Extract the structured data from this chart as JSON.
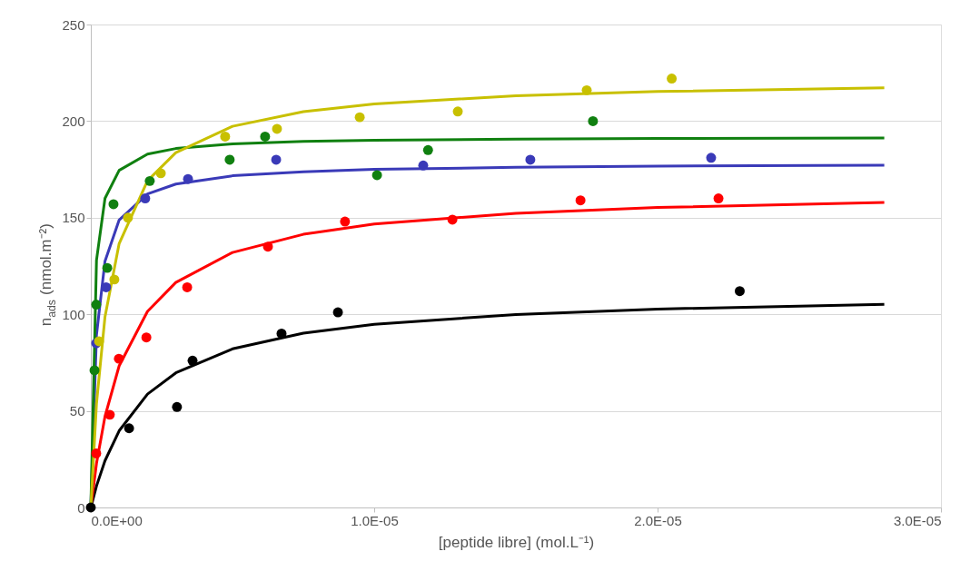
{
  "chart_data": {
    "type": "scatter",
    "xlabel": "[peptide libre] (mol.L⁻¹)",
    "ylabel": "n$_{ads}$ (nmol.m⁻²)",
    "xlim": [
      0,
      3e-05
    ],
    "ylim": [
      0,
      250
    ],
    "xticks": [
      {
        "value": 0,
        "label": "0.0E+00"
      },
      {
        "value": 1e-05,
        "label": "1.0E-05"
      },
      {
        "value": 2e-05,
        "label": "2.0E-05"
      },
      {
        "value": 3e-05,
        "label": "3.0E-05"
      }
    ],
    "yticks": [
      0,
      50,
      100,
      150,
      200,
      250
    ],
    "grid": "y",
    "marker": "circle",
    "series": [
      {
        "color": "#000000",
        "x": [
          0,
          1.35e-06,
          3.04e-06,
          3.59e-06,
          6.73e-06,
          8.72e-06,
          2.29e-05
        ],
        "values": [
          0,
          41,
          52,
          76,
          90,
          101,
          112
        ]
      },
      {
        "color": "#ff0000",
        "x": [
          1.9e-07,
          6.7e-07,
          9.9e-07,
          1.96e-06,
          3.4e-06,
          6.25e-06,
          8.97e-06,
          1.276e-05,
          1.728e-05,
          2.215e-05
        ],
        "values": [
          28,
          48,
          77,
          88,
          114,
          135,
          148,
          149,
          159,
          160
        ]
      },
      {
        "color": "#3a3ab8",
        "x": [
          1.9e-07,
          5.4e-07,
          1.92e-06,
          3.43e-06,
          6.54e-06,
          1.173e-05,
          1.551e-05,
          2.189e-05
        ],
        "values": [
          85,
          114,
          160,
          170,
          180,
          177,
          180,
          181
        ]
      },
      {
        "color": "#108010",
        "x": [
          1.3e-07,
          1.9e-07,
          5.8e-07,
          8e-07,
          2.08e-06,
          4.9e-06,
          6.15e-06,
          1.01e-05,
          1.19e-05,
          1.772e-05
        ],
        "values": [
          71,
          105,
          124,
          157,
          169,
          180,
          192,
          172,
          185,
          200
        ]
      },
      {
        "color": "#c8c000",
        "x": [
          2.9e-07,
          8.3e-07,
          1.31e-06,
          2.47e-06,
          4.74e-06,
          6.57e-06,
          9.49e-06,
          1.295e-05,
          1.75e-05,
          2.05e-05
        ],
        "values": [
          86,
          118,
          150,
          173,
          192,
          196,
          202,
          205,
          216,
          222
        ]
      },
      {
        "type": "line",
        "marker": "none",
        "line_style": "solid",
        "color": "#000000",
        "x": [
          0,
          2e-07,
          5e-07,
          1e-06,
          2e-06,
          3e-06,
          5e-06,
          7.5e-06,
          1e-05,
          1.5e-05,
          2e-05,
          2.8e-05
        ],
        "values": [
          0,
          11.1,
          24.2,
          39.7,
          58.7,
          69.7,
          82.1,
          90.2,
          94.8,
          99.9,
          102.7,
          105.2
        ]
      },
      {
        "type": "line",
        "marker": "none",
        "line_style": "solid",
        "color": "#ff0000",
        "x": [
          0,
          2e-07,
          5e-07,
          1e-06,
          2e-06,
          3e-06,
          5e-06,
          7.5e-06,
          1e-05,
          1.5e-05,
          2e-05,
          2.8e-05
        ],
        "values": [
          0,
          22.8,
          47.1,
          73.3,
          101.5,
          116.5,
          132,
          141.4,
          146.7,
          152.3,
          155.3,
          157.9
        ]
      },
      {
        "type": "line",
        "marker": "none",
        "line_style": "solid",
        "color": "#3a3ab8",
        "x": [
          0,
          2e-07,
          5e-07,
          1e-06,
          2e-06,
          3e-06,
          5e-06,
          7.5e-06,
          1e-05,
          1.5e-05,
          2e-05,
          2.8e-05
        ],
        "values": [
          0,
          89.3,
          127.5,
          148.8,
          162.3,
          167.4,
          171.7,
          173.8,
          175,
          176.1,
          176.7,
          177.2
        ]
      },
      {
        "type": "line",
        "marker": "none",
        "line_style": "solid",
        "color": "#108010",
        "x": [
          0,
          2e-07,
          5e-07,
          1e-06,
          2e-06,
          3e-06,
          5e-06,
          7.5e-06,
          1e-05,
          1.5e-05,
          2e-05,
          2.8e-05
        ],
        "values": [
          0,
          128,
          160,
          174.5,
          182.9,
          185.8,
          188.2,
          189.5,
          190.1,
          190.7,
          191,
          191.3
        ]
      },
      {
        "type": "line",
        "marker": "none",
        "line_style": "solid",
        "color": "#c8c000",
        "x": [
          0,
          2e-07,
          5e-07,
          1e-06,
          2e-06,
          3e-06,
          5e-06,
          7.5e-06,
          1e-05,
          1.5e-05,
          2e-05,
          2.8e-05
        ],
        "values": [
          0,
          53.8,
          98.7,
          136.6,
          169.1,
          183.7,
          197.3,
          204.9,
          208.9,
          213.1,
          215.3,
          217.2
        ]
      }
    ]
  }
}
